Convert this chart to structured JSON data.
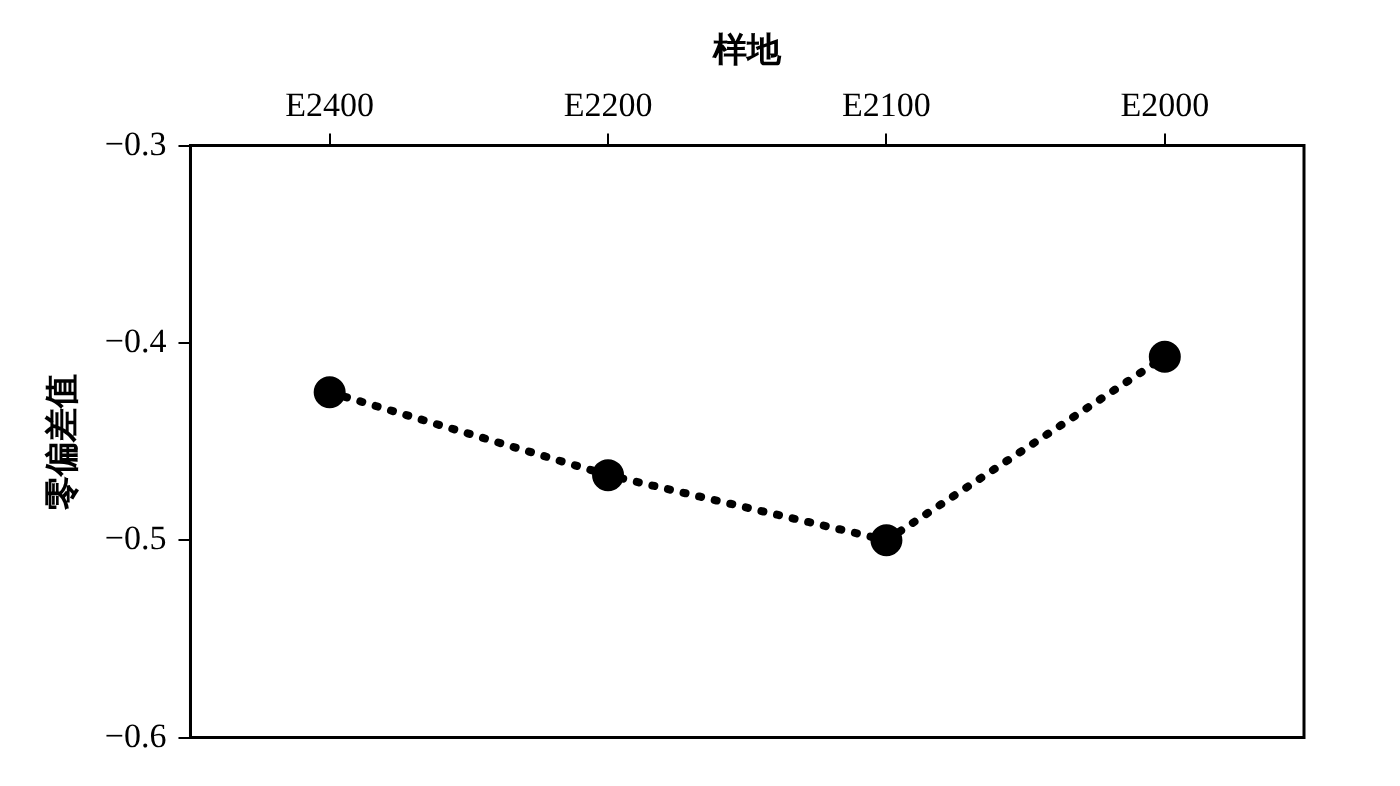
{
  "chart_data": {
    "type": "line",
    "xlabel": "样地",
    "ylabel": "零偏差值",
    "categories": [
      "E2400",
      "E2200",
      "E2100",
      "E2000"
    ],
    "series": [
      {
        "color": "#000000",
        "values": [
          -0.425,
          -0.467,
          -0.5,
          -0.407
        ]
      }
    ],
    "ylim": [
      -0.6,
      -0.3
    ],
    "yticks": [
      {
        "value": -0.6,
        "label": "−0.6"
      },
      {
        "value": -0.5,
        "label": "−0.5"
      },
      {
        "value": -0.4,
        "label": "−0.4"
      },
      {
        "value": -0.3,
        "label": "−0.3"
      }
    ],
    "grid": false,
    "legend": false,
    "marker": "circle",
    "line_style": "dotted"
  }
}
